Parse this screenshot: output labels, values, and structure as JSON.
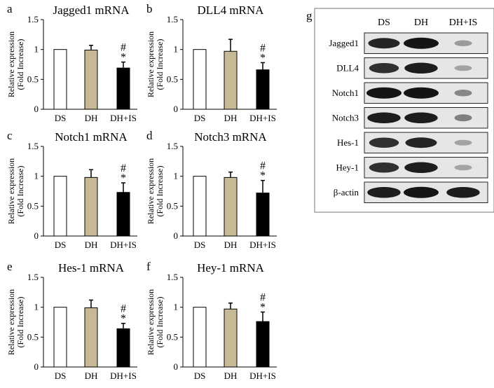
{
  "colors": {
    "bar_ds": "#ffffff",
    "bar_dh": "#c8b996",
    "bar_dhis": "#000000",
    "axis": "#000000",
    "blot_bg": "#e6e6e6",
    "band": "#151515"
  },
  "chart_data": [
    {
      "panel": "a",
      "type": "bar",
      "title": "Jagged1 mRNA",
      "ylabel_line1": "Relative expression",
      "ylabel_line2": "(Fold Increase)",
      "ylim": [
        0,
        1.5
      ],
      "yticks": [
        "0",
        "0.5",
        "1",
        "1.5"
      ],
      "categories": [
        "DS",
        "DH",
        "DH+IS"
      ],
      "values": [
        1.0,
        0.99,
        0.69
      ],
      "errors": [
        0,
        0.08,
        0.1
      ],
      "annotations": [
        "",
        "",
        "#\n*"
      ]
    },
    {
      "panel": "b",
      "type": "bar",
      "title": "DLL4 mRNA",
      "ylabel_line1": "Relative expression",
      "ylabel_line2": "(Fold Increase)",
      "ylim": [
        0,
        1.5
      ],
      "yticks": [
        "0",
        "0.5",
        "1",
        "1.5"
      ],
      "categories": [
        "DS",
        "DH",
        "DH+IS"
      ],
      "values": [
        1.0,
        0.97,
        0.66
      ],
      "errors": [
        0,
        0.2,
        0.12
      ],
      "annotations": [
        "",
        "",
        "#\n*"
      ]
    },
    {
      "panel": "c",
      "type": "bar",
      "title": "Notch1 mRNA",
      "ylabel_line1": "Relative expression",
      "ylabel_line2": "(Fold Increase)",
      "ylim": [
        0,
        1.5
      ],
      "yticks": [
        "0",
        "0.5",
        "1",
        "1.5"
      ],
      "categories": [
        "DS",
        "DH",
        "DH+IS"
      ],
      "values": [
        1.0,
        0.98,
        0.73
      ],
      "errors": [
        0,
        0.13,
        0.16
      ],
      "annotations": [
        "",
        "",
        "#\n*"
      ]
    },
    {
      "panel": "d",
      "type": "bar",
      "title": "Notch3 mRNA",
      "ylabel_line1": "Relative expression",
      "ylabel_line2": "(Fold Increase)",
      "ylim": [
        0,
        1.5
      ],
      "yticks": [
        "0",
        "0.5",
        "1",
        "1.5"
      ],
      "categories": [
        "DS",
        "DH",
        "DH+IS"
      ],
      "values": [
        1.0,
        0.98,
        0.72
      ],
      "errors": [
        0,
        0.09,
        0.21
      ],
      "annotations": [
        "",
        "",
        "#\n*"
      ]
    },
    {
      "panel": "e",
      "type": "bar",
      "title": "Hes-1 mRNA",
      "ylabel_line1": "Relative expression",
      "ylabel_line2": "(Fold Increase)",
      "ylim": [
        0,
        1.5
      ],
      "yticks": [
        "0",
        "0.5",
        "1",
        "1.5"
      ],
      "categories": [
        "DS",
        "DH",
        "DH+IS"
      ],
      "values": [
        1.0,
        0.99,
        0.64
      ],
      "errors": [
        0,
        0.13,
        0.09
      ],
      "annotations": [
        "",
        "",
        "#\n*"
      ]
    },
    {
      "panel": "f",
      "type": "bar",
      "title": "Hey-1 mRNA",
      "ylabel_line1": "Relative expression",
      "ylabel_line2": "(Fold Increase)",
      "ylim": [
        0,
        1.5
      ],
      "yticks": [
        "0",
        "0.5",
        "1",
        "1.5"
      ],
      "categories": [
        "DS",
        "DH",
        "DH+IS"
      ],
      "values": [
        1.0,
        0.97,
        0.76
      ],
      "errors": [
        0,
        0.1,
        0.16
      ],
      "annotations": [
        "",
        "",
        "#\n*"
      ]
    }
  ],
  "blot": {
    "panel": "g",
    "columns": [
      "DS",
      "DH",
      "DH+IS"
    ],
    "rows": [
      {
        "label": "Jagged1",
        "intensity": [
          0.9,
          1.0,
          0.25
        ]
      },
      {
        "label": "DLL4",
        "intensity": [
          0.85,
          0.95,
          0.2
        ]
      },
      {
        "label": "Notch1",
        "intensity": [
          1.0,
          1.0,
          0.35
        ]
      },
      {
        "label": "Notch3",
        "intensity": [
          0.95,
          0.95,
          0.4
        ]
      },
      {
        "label": "Hes-1",
        "intensity": [
          0.85,
          0.9,
          0.2
        ]
      },
      {
        "label": "Hey-1",
        "intensity": [
          0.85,
          0.95,
          0.2
        ]
      },
      {
        "label": "β-actin",
        "intensity": [
          0.95,
          1.0,
          0.95
        ]
      }
    ]
  }
}
